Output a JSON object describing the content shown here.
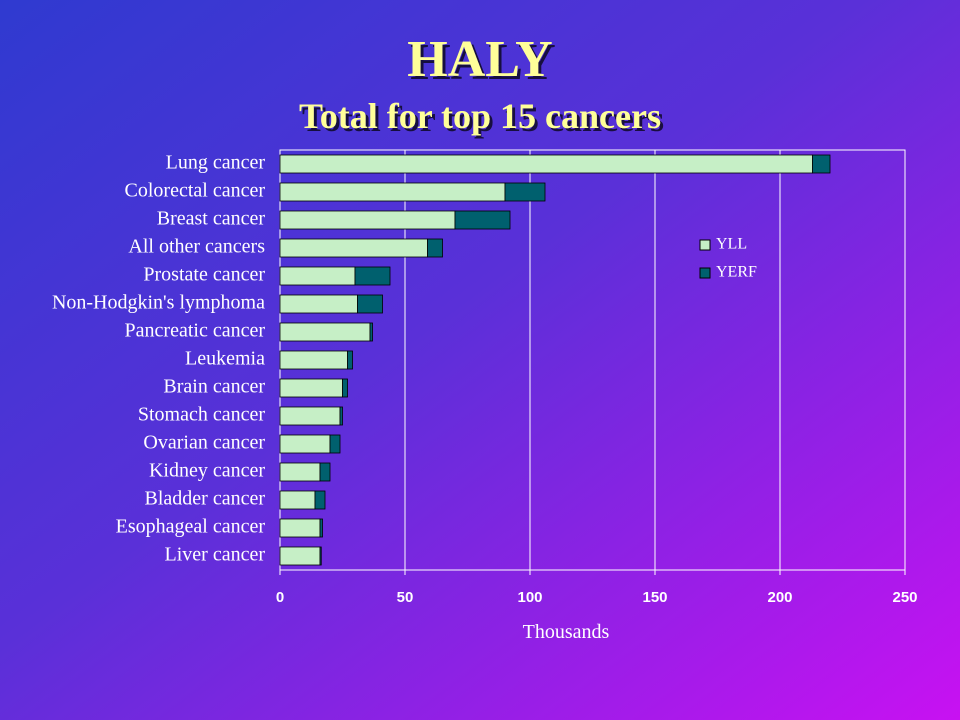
{
  "chart_data": {
    "type": "stacked-barh",
    "title": "HALY",
    "subtitle": "Total for top 15 cancers",
    "x_label": "Thousands",
    "categories": [
      "Lung cancer",
      "Colorectal cancer",
      "Breast cancer",
      "All other cancers",
      "Prostate cancer",
      "Non-Hodgkin's lymphoma",
      "Pancreatic cancer",
      "Leukemia",
      "Brain cancer",
      "Stomach cancer",
      "Ovarian cancer",
      "Kidney cancer",
      "Bladder cancer",
      "Esophageal cancer",
      "Liver cancer"
    ],
    "series": [
      {
        "name": "YLL",
        "color": "#c6efc6",
        "values": [
          213,
          90,
          70,
          59,
          30,
          31,
          36,
          27,
          25,
          24,
          20,
          16,
          14,
          16,
          16
        ]
      },
      {
        "name": "YERF",
        "color": "#00606e",
        "values": [
          7,
          16,
          22,
          6,
          14,
          10,
          1,
          2,
          2,
          1,
          4,
          4,
          4,
          1,
          0.5
        ]
      }
    ],
    "xlim": [
      0,
      250
    ],
    "xticks": [
      0,
      50,
      100,
      150,
      200,
      250
    ],
    "grid": true
  }
}
